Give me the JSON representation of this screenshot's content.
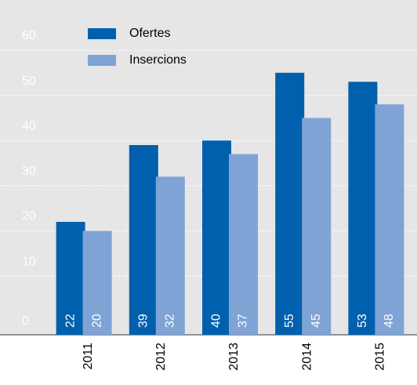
{
  "chart_data": {
    "type": "bar",
    "categories": [
      "2011",
      "2012",
      "2013",
      "2014",
      "2015"
    ],
    "series": [
      {
        "name": "Ofertes",
        "color": "#0060ae",
        "values": [
          22,
          39,
          40,
          55,
          53
        ]
      },
      {
        "name": "Insercions",
        "color": "#7fa3d5",
        "values": [
          20,
          32,
          37,
          45,
          48
        ]
      }
    ],
    "ylim": [
      -3,
      60
    ],
    "yticks": [
      0,
      10,
      20,
      30,
      40,
      50,
      60
    ],
    "grid": true,
    "legend": "top-left"
  }
}
